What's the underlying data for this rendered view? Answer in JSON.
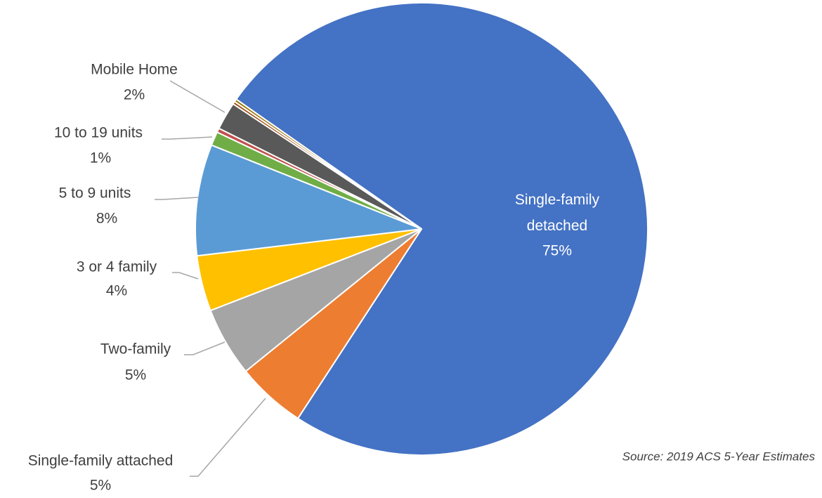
{
  "chart_data": {
    "type": "pie",
    "categories": [
      "Single-family detached",
      "Single-family attached",
      "Two-family",
      "3 or 4 family",
      "5 to 9 units",
      "10 to 19 units",
      null,
      "Mobile Home",
      null,
      null
    ],
    "values": [
      75,
      5,
      5,
      4,
      8,
      1,
      0.3,
      2,
      0.2,
      0.2
    ],
    "value_labels": [
      "75%",
      "5%",
      "5%",
      "4%",
      "8%",
      "1%",
      null,
      "2%",
      null,
      null
    ],
    "colors": [
      "#4472c4",
      "#ed7d31",
      "#a5a5a5",
      "#ffc000",
      "#5b9bd5",
      "#70ad47",
      "#c0504d",
      "#595959",
      "#9e480e",
      "#997300"
    ],
    "source": "Source: 2019 ACS 5-Year Estimates"
  }
}
